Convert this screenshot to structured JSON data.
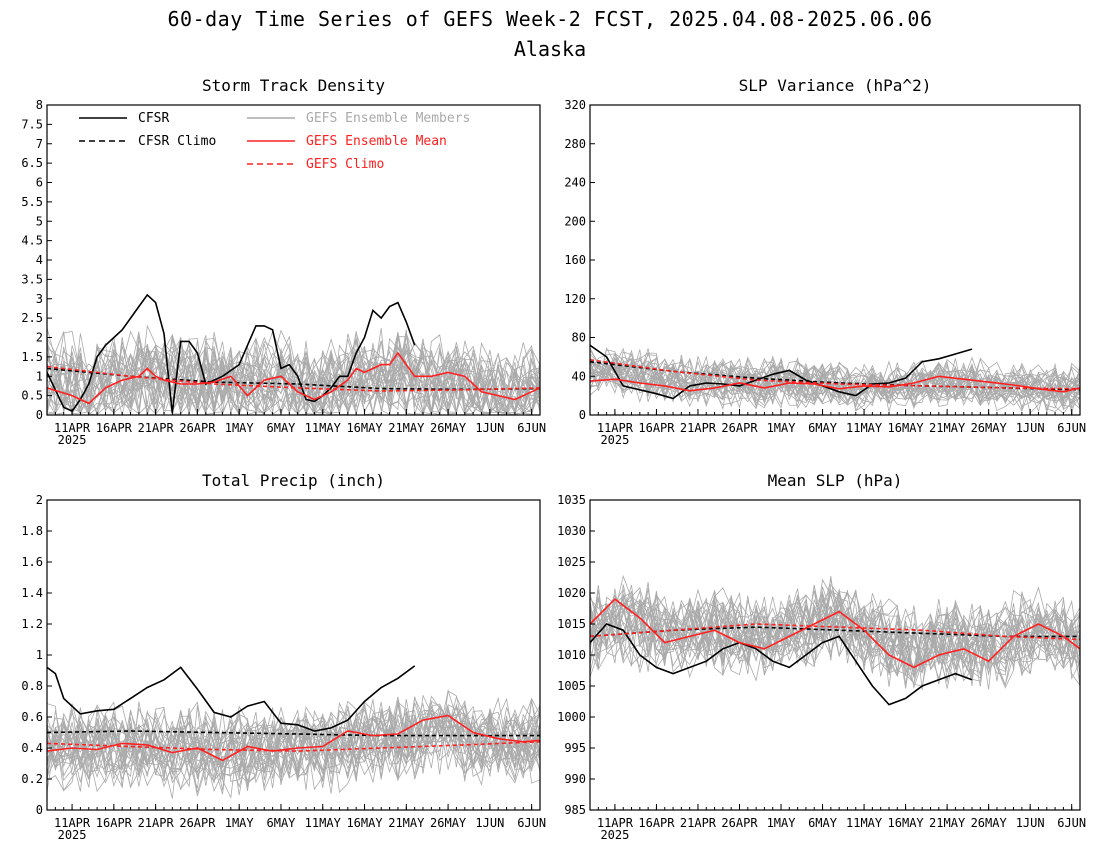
{
  "figure": {
    "title": "60-day Time Series of GEFS Week-2 FCST, 2025.04.08-2025.06.06",
    "subtitle": "Alaska"
  },
  "legend": {
    "cfsr": "CFSR",
    "cfsr_climo": "CFSR Climo",
    "members": "GEFS Ensemble Members",
    "ens_mean": "GEFS Ensemble Mean",
    "gefs_climo": "GEFS Climo"
  },
  "colors": {
    "cfsr": "#000000",
    "ens_mean": "#ff2020",
    "members": "#aaaaaa",
    "gefs_climo": "#ff2020"
  },
  "x_tick_labels": [
    "11APR",
    "16APR",
    "21APR",
    "26APR",
    "1MAY",
    "6MAY",
    "11MAY",
    "16MAY",
    "21MAY",
    "26MAY",
    "1JUN",
    "6JUN"
  ],
  "x_year_label": "2025",
  "chart_data": [
    {
      "type": "line",
      "title": "Storm Track Density",
      "x_start": "2025-04-08",
      "x_end": "2025-06-06",
      "ylim": [
        0,
        8
      ],
      "yticks": [
        "0",
        "0.5",
        "1",
        "1.5",
        "2",
        "2.5",
        "3",
        "3.5",
        "4",
        "4.5",
        "5",
        "5.5",
        "6",
        "6.5",
        "7",
        "7.5",
        "8"
      ],
      "members": {
        "count": 30,
        "spread": 0.9,
        "base": 0.8
      },
      "series": [
        {
          "name": "CFSR",
          "style": "solid",
          "color": "#000000",
          "x": [
            0,
            2,
            3,
            4,
            5,
            6,
            7,
            9,
            11,
            12,
            13,
            14,
            15,
            16,
            17,
            18,
            19,
            20,
            21,
            23,
            24,
            25,
            26,
            27,
            28,
            29,
            30,
            31,
            32,
            33,
            34,
            35,
            36,
            37,
            38,
            39,
            40,
            41,
            42,
            43,
            44
          ],
          "values": [
            1.1,
            0.2,
            0.1,
            0.4,
            0.8,
            1.5,
            1.8,
            2.2,
            2.8,
            3.1,
            2.9,
            2.1,
            0.05,
            1.9,
            1.9,
            1.6,
            0.8,
            0.9,
            1.0,
            1.3,
            1.8,
            2.3,
            2.3,
            2.2,
            1.2,
            1.3,
            1.0,
            0.4,
            0.35,
            0.5,
            0.7,
            1.0,
            1.0,
            1.6,
            2.0,
            2.7,
            2.5,
            2.8,
            2.9,
            2.4,
            1.8
          ]
        },
        {
          "name": "CFSR Climo",
          "style": "dashed",
          "color": "#000000",
          "x": [
            0,
            10,
            20,
            30,
            40,
            50,
            59
          ],
          "values": [
            1.2,
            1.0,
            0.85,
            0.8,
            0.68,
            0.66,
            0.68
          ]
        },
        {
          "name": "GEFS Ensemble Mean",
          "style": "solid",
          "color": "#ff2020",
          "x": [
            0,
            3,
            5,
            7,
            9,
            11,
            12,
            13,
            14,
            16,
            18,
            20,
            22,
            24,
            26,
            28,
            29,
            30,
            32,
            34,
            36,
            37,
            38,
            40,
            41,
            42,
            43,
            44,
            46,
            48,
            50,
            52,
            54,
            56,
            58,
            59
          ],
          "values": [
            0.7,
            0.5,
            0.3,
            0.7,
            0.9,
            1.0,
            1.2,
            1.0,
            0.9,
            0.8,
            0.8,
            0.85,
            1.0,
            0.5,
            0.9,
            1.0,
            0.8,
            0.6,
            0.4,
            0.6,
            0.9,
            1.2,
            1.1,
            1.3,
            1.3,
            1.6,
            1.3,
            1.0,
            1.0,
            1.1,
            1.0,
            0.6,
            0.5,
            0.4,
            0.6,
            0.7
          ]
        },
        {
          "name": "GEFS Climo",
          "style": "dashed",
          "color": "#ff2020",
          "x": [
            0,
            10,
            20,
            30,
            40,
            50,
            59
          ],
          "values": [
            1.25,
            1.0,
            0.8,
            0.7,
            0.62,
            0.65,
            0.7
          ]
        }
      ]
    },
    {
      "type": "line",
      "title": "SLP Variance (hPa^2)",
      "x_start": "2025-04-08",
      "x_end": "2025-06-06",
      "ylim": [
        0,
        320
      ],
      "yticks": [
        "0",
        "40",
        "80",
        "120",
        "160",
        "200",
        "240",
        "280",
        "320"
      ],
      "members": {
        "count": 30,
        "spread": 18,
        "base": 38
      },
      "series": [
        {
          "name": "CFSR",
          "style": "solid",
          "color": "#000000",
          "x": [
            0,
            2,
            4,
            6,
            8,
            10,
            12,
            14,
            16,
            18,
            20,
            22,
            24,
            26,
            28,
            30,
            32,
            34,
            36,
            38,
            40,
            42,
            44,
            46
          ],
          "values": [
            72,
            60,
            30,
            26,
            22,
            17,
            30,
            33,
            32,
            30,
            36,
            42,
            46,
            36,
            30,
            24,
            20,
            32,
            33,
            38,
            55,
            58,
            63,
            68
          ]
        },
        {
          "name": "CFSR Climo",
          "style": "dashed",
          "color": "#000000",
          "x": [
            0,
            10,
            20,
            30,
            40,
            50,
            59
          ],
          "values": [
            55,
            45,
            38,
            33,
            30,
            28,
            26
          ]
        },
        {
          "name": "GEFS Ensemble Mean",
          "style": "solid",
          "color": "#ff2020",
          "x": [
            0,
            3,
            6,
            9,
            12,
            15,
            18,
            21,
            24,
            27,
            30,
            33,
            36,
            39,
            42,
            45,
            48,
            51,
            54,
            57,
            59
          ],
          "values": [
            35,
            37,
            33,
            30,
            25,
            28,
            33,
            28,
            33,
            32,
            27,
            30,
            29,
            33,
            40,
            37,
            34,
            31,
            27,
            24,
            28
          ]
        },
        {
          "name": "GEFS Climo",
          "style": "dashed",
          "color": "#ff2020",
          "x": [
            0,
            10,
            20,
            30,
            40,
            50,
            59
          ],
          "values": [
            57,
            45,
            36,
            32,
            30,
            28,
            27
          ]
        }
      ]
    },
    {
      "type": "line",
      "title": "Total Precip (inch)",
      "x_start": "2025-04-08",
      "x_end": "2025-06-06",
      "ylim": [
        0,
        2
      ],
      "yticks": [
        "0",
        "0.2",
        "0.4",
        "0.6",
        "0.8",
        "1",
        "1.2",
        "1.4",
        "1.6",
        "1.8",
        "2"
      ],
      "members": {
        "count": 30,
        "spread": 0.2,
        "base": 0.42
      },
      "series": [
        {
          "name": "CFSR",
          "style": "solid",
          "color": "#000000",
          "x": [
            0,
            1,
            2,
            4,
            6,
            8,
            10,
            12,
            14,
            16,
            18,
            20,
            22,
            24,
            26,
            28,
            30,
            32,
            34,
            36,
            38,
            40,
            42,
            44
          ],
          "values": [
            0.92,
            0.88,
            0.72,
            0.62,
            0.64,
            0.65,
            0.72,
            0.79,
            0.84,
            0.92,
            0.78,
            0.63,
            0.6,
            0.67,
            0.7,
            0.56,
            0.55,
            0.51,
            0.53,
            0.58,
            0.7,
            0.79,
            0.85,
            0.93
          ]
        },
        {
          "name": "CFSR Climo",
          "style": "dashed",
          "color": "#000000",
          "x": [
            0,
            10,
            20,
            30,
            40,
            50,
            59
          ],
          "values": [
            0.5,
            0.51,
            0.5,
            0.49,
            0.48,
            0.48,
            0.48
          ]
        },
        {
          "name": "GEFS Ensemble Mean",
          "style": "solid",
          "color": "#ff2020",
          "x": [
            0,
            3,
            6,
            9,
            12,
            15,
            18,
            21,
            24,
            27,
            30,
            33,
            36,
            39,
            42,
            45,
            48,
            51,
            54,
            57,
            59
          ],
          "values": [
            0.38,
            0.4,
            0.39,
            0.43,
            0.42,
            0.37,
            0.4,
            0.32,
            0.41,
            0.38,
            0.4,
            0.41,
            0.51,
            0.48,
            0.49,
            0.58,
            0.61,
            0.5,
            0.46,
            0.44,
            0.45
          ]
        },
        {
          "name": "GEFS Climo",
          "style": "dashed",
          "color": "#ff2020",
          "x": [
            0,
            10,
            20,
            30,
            40,
            50,
            59
          ],
          "values": [
            0.43,
            0.41,
            0.39,
            0.38,
            0.4,
            0.42,
            0.44
          ]
        }
      ]
    },
    {
      "type": "line",
      "title": "Mean SLP (hPa)",
      "x_start": "2025-04-08",
      "x_end": "2025-06-06",
      "ylim": [
        985,
        1035
      ],
      "yticks": [
        "985",
        "990",
        "995",
        "1000",
        "1005",
        "1010",
        "1015",
        "1020",
        "1025",
        "1030",
        "1035"
      ],
      "members": {
        "count": 30,
        "spread": 5,
        "base": 1013
      },
      "series": [
        {
          "name": "CFSR",
          "style": "solid",
          "color": "#000000",
          "x": [
            0,
            2,
            4,
            6,
            8,
            10,
            12,
            14,
            16,
            18,
            20,
            22,
            24,
            26,
            28,
            30,
            32,
            34,
            36,
            38,
            40,
            42,
            44,
            46
          ],
          "values": [
            1012,
            1015,
            1014,
            1010,
            1008,
            1007,
            1008,
            1009,
            1011,
            1012,
            1011,
            1009,
            1008,
            1010,
            1012,
            1013,
            1009,
            1005,
            1002,
            1003,
            1005,
            1006,
            1007,
            1006
          ]
        },
        {
          "name": "CFSR Climo",
          "style": "dashed",
          "color": "#000000",
          "x": [
            0,
            10,
            20,
            30,
            40,
            50,
            59
          ],
          "values": [
            1013,
            1014,
            1014.5,
            1014,
            1013.5,
            1013,
            1013
          ]
        },
        {
          "name": "GEFS Ensemble Mean",
          "style": "solid",
          "color": "#ff2020",
          "x": [
            0,
            3,
            6,
            9,
            12,
            15,
            18,
            21,
            24,
            27,
            30,
            33,
            36,
            39,
            42,
            45,
            48,
            51,
            54,
            57,
            59
          ],
          "values": [
            1015,
            1019,
            1016,
            1012,
            1013,
            1014,
            1012,
            1011,
            1013,
            1015,
            1017,
            1014,
            1010,
            1008,
            1010,
            1011,
            1009,
            1013,
            1015,
            1013,
            1011
          ]
        },
        {
          "name": "GEFS Climo",
          "style": "dashed",
          "color": "#ff2020",
          "x": [
            0,
            10,
            20,
            30,
            40,
            50,
            59
          ],
          "values": [
            1013,
            1014,
            1015,
            1014.5,
            1014,
            1013,
            1012.5
          ]
        }
      ]
    }
  ]
}
